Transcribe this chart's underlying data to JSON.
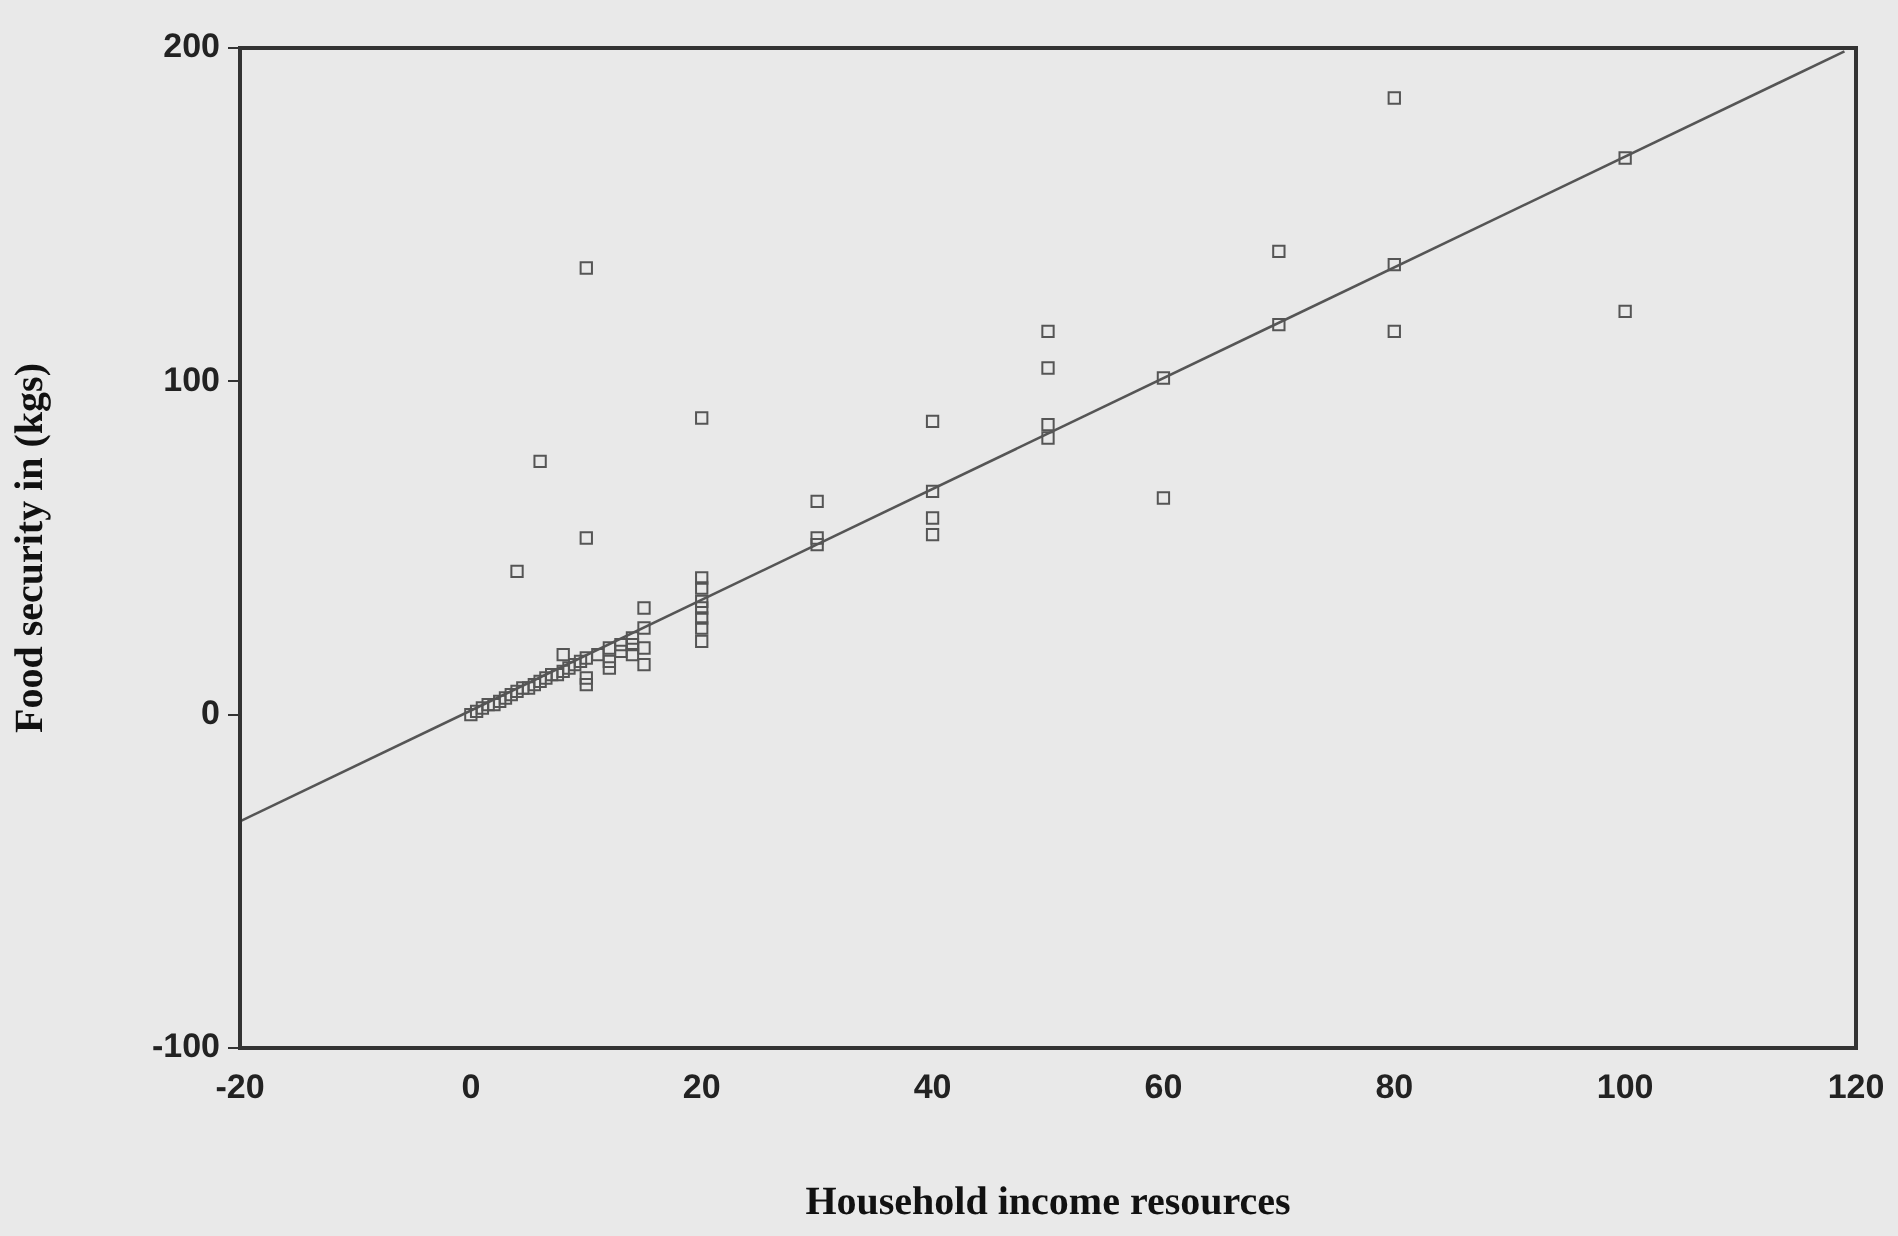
{
  "chart_data": {
    "type": "scatter",
    "xlabel": "Household income resources",
    "ylabel": "Food security in (kgs)",
    "xlim": [
      -20,
      120
    ],
    "xticks": [
      -20,
      0,
      20,
      40,
      60,
      80,
      100,
      120
    ],
    "ylim": [
      -100,
      200
    ],
    "yticks": [
      -100,
      0,
      100,
      200
    ],
    "series": [
      {
        "color": "#555555",
        "marker": "square",
        "x": [
          10,
          6,
          10,
          4,
          20,
          40,
          40,
          40,
          40,
          30,
          30,
          30,
          20,
          20,
          20,
          20,
          20,
          20,
          20,
          15,
          15,
          15,
          15,
          0,
          0.5,
          1,
          1.5,
          2,
          2.5,
          3,
          3.5,
          4,
          4.5,
          5,
          5.5,
          6,
          6.5,
          7,
          7.5,
          8,
          8.5,
          9,
          9.5,
          10,
          11,
          12,
          13,
          14,
          8,
          10,
          10,
          12,
          12,
          13,
          14,
          14,
          80,
          100,
          70,
          80,
          100,
          70,
          80,
          50,
          50,
          50,
          50,
          60,
          60
        ],
        "values": [
          134,
          76,
          53,
          43,
          89,
          88,
          67,
          59,
          54,
          64,
          53,
          51,
          41,
          38,
          34,
          32,
          29,
          26,
          22,
          32,
          26,
          20,
          15,
          0,
          1,
          2,
          3,
          3,
          4,
          5,
          6,
          7,
          8,
          8,
          9,
          10,
          11,
          12,
          12,
          13,
          14,
          15,
          16,
          17,
          18,
          20,
          21,
          23,
          18,
          11,
          9,
          14,
          16,
          19,
          21,
          18,
          185,
          167,
          139,
          135,
          121,
          117,
          115,
          115,
          104,
          87,
          83,
          101,
          65
        ]
      },
      {
        "type": "line",
        "color": "#555555",
        "marker": "none",
        "x": [
          -20,
          119
        ],
        "values": [
          -32,
          199
        ]
      }
    ]
  }
}
